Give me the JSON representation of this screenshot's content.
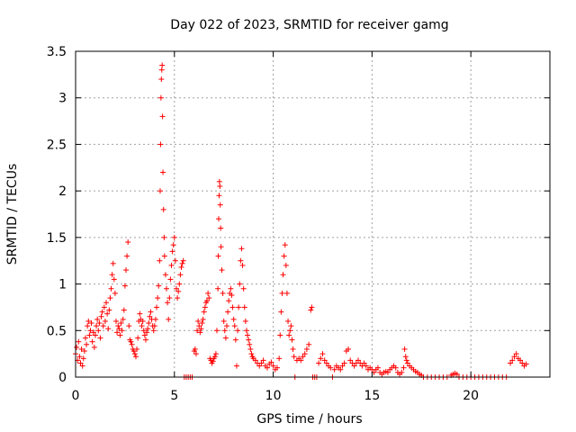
{
  "chart_data": {
    "type": "scatter",
    "title": "Day 022 of 2023, SRMTID for receiver gamg",
    "xlabel": "GPS time / hours",
    "ylabel": "SRMTID / TECUs",
    "xlim": [
      0,
      24
    ],
    "ylim": [
      0,
      3.5
    ],
    "grid": true,
    "x_ticks": [
      0,
      5,
      10,
      15,
      20
    ],
    "x_tick_labels": [
      "0",
      "5",
      "10",
      "15",
      "20"
    ],
    "y_ticks": [
      0,
      0.5,
      1,
      1.5,
      2,
      2.5,
      3,
      3.5
    ],
    "y_tick_labels": [
      "0",
      "0.5",
      "1",
      "1.5",
      "2",
      "2.5",
      "3",
      "3.5"
    ],
    "series": [
      {
        "name": "SRMTID",
        "marker": "plus",
        "color": "#ff0000",
        "points": [
          [
            0.0,
            0.25
          ],
          [
            0.05,
            0.32
          ],
          [
            0.1,
            0.18
          ],
          [
            0.15,
            0.38
          ],
          [
            0.2,
            0.22
          ],
          [
            0.25,
            0.15
          ],
          [
            0.3,
            0.3
          ],
          [
            0.35,
            0.12
          ],
          [
            0.4,
            0.2
          ],
          [
            0.45,
            0.28
          ],
          [
            0.5,
            0.42
          ],
          [
            0.55,
            0.35
          ],
          [
            0.6,
            0.55
          ],
          [
            0.65,
            0.6
          ],
          [
            0.7,
            0.45
          ],
          [
            0.75,
            0.5
          ],
          [
            0.8,
            0.58
          ],
          [
            0.85,
            0.38
          ],
          [
            0.9,
            0.48
          ],
          [
            0.95,
            0.32
          ],
          [
            1.0,
            0.45
          ],
          [
            1.05,
            0.55
          ],
          [
            1.1,
            0.62
          ],
          [
            1.15,
            0.5
          ],
          [
            1.2,
            0.58
          ],
          [
            1.25,
            0.42
          ],
          [
            1.3,
            0.65
          ],
          [
            1.35,
            0.7
          ],
          [
            1.4,
            0.55
          ],
          [
            1.45,
            0.75
          ],
          [
            1.5,
            0.6
          ],
          [
            1.55,
            0.8
          ],
          [
            1.6,
            0.68
          ],
          [
            1.65,
            0.52
          ],
          [
            1.7,
            0.72
          ],
          [
            1.75,
            0.85
          ],
          [
            1.8,
            0.95
          ],
          [
            1.85,
            1.1
          ],
          [
            1.9,
            1.22
          ],
          [
            1.95,
            1.05
          ],
          [
            2.0,
            0.9
          ],
          [
            2.05,
            0.6
          ],
          [
            2.1,
            0.48
          ],
          [
            2.15,
            0.55
          ],
          [
            2.2,
            0.52
          ],
          [
            2.25,
            0.45
          ],
          [
            2.3,
            0.58
          ],
          [
            2.35,
            0.5
          ],
          [
            2.4,
            0.62
          ],
          [
            2.45,
            0.72
          ],
          [
            2.5,
            0.98
          ],
          [
            2.55,
            1.15
          ],
          [
            2.6,
            1.3
          ],
          [
            2.65,
            1.45
          ],
          [
            2.7,
            0.55
          ],
          [
            2.75,
            0.4
          ],
          [
            2.8,
            0.38
          ],
          [
            2.85,
            0.35
          ],
          [
            2.9,
            0.3
          ],
          [
            2.95,
            0.28
          ],
          [
            3.0,
            0.25
          ],
          [
            3.05,
            0.22
          ],
          [
            3.1,
            0.3
          ],
          [
            3.15,
            0.42
          ],
          [
            3.2,
            0.6
          ],
          [
            3.25,
            0.68
          ],
          [
            3.3,
            0.62
          ],
          [
            3.35,
            0.55
          ],
          [
            3.4,
            0.6
          ],
          [
            3.45,
            0.5
          ],
          [
            3.5,
            0.45
          ],
          [
            3.55,
            0.4
          ],
          [
            3.6,
            0.48
          ],
          [
            3.65,
            0.52
          ],
          [
            3.7,
            0.58
          ],
          [
            3.75,
            0.65
          ],
          [
            3.8,
            0.7
          ],
          [
            3.85,
            0.62
          ],
          [
            3.9,
            0.55
          ],
          [
            3.95,
            0.5
          ],
          [
            4.0,
            0.55
          ],
          [
            4.05,
            0.62
          ],
          [
            4.1,
            0.75
          ],
          [
            4.15,
            0.85
          ],
          [
            4.2,
            0.98
          ],
          [
            4.25,
            1.25
          ],
          [
            4.28,
            2.0
          ],
          [
            4.3,
            2.5
          ],
          [
            4.32,
            3.0
          ],
          [
            4.34,
            3.2
          ],
          [
            4.36,
            3.3
          ],
          [
            4.38,
            3.35
          ],
          [
            4.4,
            2.8
          ],
          [
            4.42,
            2.2
          ],
          [
            4.45,
            1.8
          ],
          [
            4.48,
            1.5
          ],
          [
            4.5,
            1.3
          ],
          [
            4.55,
            1.1
          ],
          [
            4.6,
            0.95
          ],
          [
            4.65,
            0.8
          ],
          [
            4.7,
            0.62
          ],
          [
            4.75,
            0.85
          ],
          [
            4.8,
            1.05
          ],
          [
            4.85,
            1.2
          ],
          [
            4.9,
            1.35
          ],
          [
            4.95,
            1.42
          ],
          [
            5.0,
            1.5
          ],
          [
            5.05,
            1.25
          ],
          [
            5.1,
            0.95
          ],
          [
            5.15,
            0.85
          ],
          [
            5.2,
            0.92
          ],
          [
            5.25,
            1.0
          ],
          [
            5.3,
            1.1
          ],
          [
            5.35,
            1.18
          ],
          [
            5.4,
            1.22
          ],
          [
            5.45,
            1.25
          ],
          [
            5.5,
            0.0
          ],
          [
            5.6,
            0.0
          ],
          [
            5.7,
            0.0
          ],
          [
            5.8,
            0.0
          ],
          [
            5.9,
            0.0
          ],
          [
            6.0,
            0.28
          ],
          [
            6.05,
            0.3
          ],
          [
            6.1,
            0.25
          ],
          [
            6.15,
            0.5
          ],
          [
            6.2,
            0.6
          ],
          [
            6.25,
            0.55
          ],
          [
            6.3,
            0.48
          ],
          [
            6.35,
            0.52
          ],
          [
            6.4,
            0.58
          ],
          [
            6.45,
            0.62
          ],
          [
            6.5,
            0.7
          ],
          [
            6.55,
            0.75
          ],
          [
            6.6,
            0.8
          ],
          [
            6.65,
            0.82
          ],
          [
            6.7,
            0.9
          ],
          [
            6.75,
            0.85
          ],
          [
            6.8,
            0.2
          ],
          [
            6.85,
            0.18
          ],
          [
            6.9,
            0.15
          ],
          [
            6.95,
            0.17
          ],
          [
            7.0,
            0.2
          ],
          [
            7.05,
            0.22
          ],
          [
            7.1,
            0.25
          ],
          [
            7.15,
            0.5
          ],
          [
            7.2,
            0.95
          ],
          [
            7.22,
            1.3
          ],
          [
            7.24,
            1.7
          ],
          [
            7.26,
            1.95
          ],
          [
            7.28,
            2.1
          ],
          [
            7.3,
            2.05
          ],
          [
            7.32,
            1.85
          ],
          [
            7.34,
            1.6
          ],
          [
            7.36,
            1.4
          ],
          [
            7.4,
            1.15
          ],
          [
            7.45,
            0.9
          ],
          [
            7.5,
            0.6
          ],
          [
            7.55,
            0.5
          ],
          [
            7.6,
            0.42
          ],
          [
            7.65,
            0.55
          ],
          [
            7.7,
            0.7
          ],
          [
            7.75,
            0.82
          ],
          [
            7.8,
            0.9
          ],
          [
            7.85,
            0.95
          ],
          [
            7.9,
            0.88
          ],
          [
            7.95,
            0.75
          ],
          [
            8.0,
            0.62
          ],
          [
            8.05,
            0.55
          ],
          [
            8.1,
            0.4
          ],
          [
            8.15,
            0.12
          ],
          [
            8.2,
            0.5
          ],
          [
            8.25,
            0.75
          ],
          [
            8.3,
            1.0
          ],
          [
            8.35,
            1.25
          ],
          [
            8.4,
            1.38
          ],
          [
            8.45,
            1.2
          ],
          [
            8.5,
            0.95
          ],
          [
            8.55,
            0.75
          ],
          [
            8.6,
            0.6
          ],
          [
            8.65,
            0.5
          ],
          [
            8.7,
            0.45
          ],
          [
            8.75,
            0.4
          ],
          [
            8.8,
            0.35
          ],
          [
            8.85,
            0.3
          ],
          [
            8.9,
            0.25
          ],
          [
            8.95,
            0.22
          ],
          [
            9.0,
            0.2
          ],
          [
            9.1,
            0.18
          ],
          [
            9.2,
            0.15
          ],
          [
            9.3,
            0.12
          ],
          [
            9.4,
            0.15
          ],
          [
            9.5,
            0.18
          ],
          [
            9.6,
            0.12
          ],
          [
            9.7,
            0.1
          ],
          [
            9.8,
            0.14
          ],
          [
            9.9,
            0.16
          ],
          [
            10.0,
            0.12
          ],
          [
            10.1,
            0.08
          ],
          [
            10.2,
            0.1
          ],
          [
            10.3,
            0.2
          ],
          [
            10.35,
            0.45
          ],
          [
            10.4,
            0.7
          ],
          [
            10.45,
            0.9
          ],
          [
            10.5,
            1.1
          ],
          [
            10.55,
            1.3
          ],
          [
            10.6,
            1.42
          ],
          [
            10.65,
            1.2
          ],
          [
            10.7,
            0.9
          ],
          [
            10.75,
            0.6
          ],
          [
            10.8,
            0.45
          ],
          [
            10.85,
            0.5
          ],
          [
            10.9,
            0.55
          ],
          [
            10.95,
            0.4
          ],
          [
            11.0,
            0.3
          ],
          [
            11.05,
            0.22
          ],
          [
            11.1,
            0.0
          ],
          [
            11.2,
            0.18
          ],
          [
            11.3,
            0.2
          ],
          [
            11.4,
            0.18
          ],
          [
            11.5,
            0.22
          ],
          [
            11.6,
            0.25
          ],
          [
            11.7,
            0.3
          ],
          [
            11.8,
            0.35
          ],
          [
            11.9,
            0.72
          ],
          [
            11.95,
            0.75
          ],
          [
            12.0,
            0.0
          ],
          [
            12.1,
            0.0
          ],
          [
            12.2,
            0.0
          ],
          [
            12.3,
            0.15
          ],
          [
            12.4,
            0.2
          ],
          [
            12.5,
            0.25
          ],
          [
            12.6,
            0.18
          ],
          [
            12.7,
            0.15
          ],
          [
            12.8,
            0.12
          ],
          [
            12.9,
            0.1
          ],
          [
            13.0,
            0.0
          ],
          [
            13.1,
            0.08
          ],
          [
            13.2,
            0.12
          ],
          [
            13.3,
            0.1
          ],
          [
            13.4,
            0.08
          ],
          [
            13.5,
            0.12
          ],
          [
            13.6,
            0.15
          ],
          [
            13.7,
            0.28
          ],
          [
            13.8,
            0.3
          ],
          [
            13.9,
            0.18
          ],
          [
            14.0,
            0.15
          ],
          [
            14.1,
            0.12
          ],
          [
            14.2,
            0.15
          ],
          [
            14.3,
            0.18
          ],
          [
            14.4,
            0.15
          ],
          [
            14.5,
            0.12
          ],
          [
            14.6,
            0.15
          ],
          [
            14.7,
            0.12
          ],
          [
            14.8,
            0.08
          ],
          [
            14.9,
            0.1
          ],
          [
            15.0,
            0.08
          ],
          [
            15.1,
            0.05
          ],
          [
            15.2,
            0.08
          ],
          [
            15.3,
            0.1
          ],
          [
            15.4,
            0.05
          ],
          [
            15.5,
            0.03
          ],
          [
            15.6,
            0.05
          ],
          [
            15.7,
            0.06
          ],
          [
            15.8,
            0.05
          ],
          [
            15.9,
            0.08
          ],
          [
            16.0,
            0.1
          ],
          [
            16.1,
            0.12
          ],
          [
            16.2,
            0.1
          ],
          [
            16.3,
            0.05
          ],
          [
            16.4,
            0.03
          ],
          [
            16.5,
            0.05
          ],
          [
            16.6,
            0.1
          ],
          [
            16.65,
            0.3
          ],
          [
            16.7,
            0.22
          ],
          [
            16.75,
            0.18
          ],
          [
            16.8,
            0.15
          ],
          [
            16.9,
            0.12
          ],
          [
            17.0,
            0.1
          ],
          [
            17.1,
            0.08
          ],
          [
            17.2,
            0.06
          ],
          [
            17.3,
            0.05
          ],
          [
            17.4,
            0.03
          ],
          [
            17.5,
            0.02
          ],
          [
            17.6,
            0.0
          ],
          [
            17.8,
            0.0
          ],
          [
            18.0,
            0.0
          ],
          [
            18.2,
            0.0
          ],
          [
            18.4,
            0.0
          ],
          [
            18.6,
            0.0
          ],
          [
            18.8,
            0.0
          ],
          [
            19.0,
            0.02
          ],
          [
            19.1,
            0.03
          ],
          [
            19.2,
            0.04
          ],
          [
            19.3,
            0.03
          ],
          [
            19.4,
            0.0
          ],
          [
            19.6,
            0.0
          ],
          [
            19.8,
            0.0
          ],
          [
            20.0,
            0.0
          ],
          [
            20.2,
            0.0
          ],
          [
            20.4,
            0.0
          ],
          [
            20.6,
            0.0
          ],
          [
            20.8,
            0.0
          ],
          [
            21.0,
            0.0
          ],
          [
            21.2,
            0.0
          ],
          [
            21.4,
            0.0
          ],
          [
            21.6,
            0.0
          ],
          [
            21.8,
            0.0
          ],
          [
            22.0,
            0.15
          ],
          [
            22.1,
            0.18
          ],
          [
            22.2,
            0.22
          ],
          [
            22.3,
            0.25
          ],
          [
            22.4,
            0.2
          ],
          [
            22.5,
            0.18
          ],
          [
            22.6,
            0.15
          ],
          [
            22.7,
            0.12
          ],
          [
            22.8,
            0.14
          ]
        ]
      }
    ]
  }
}
